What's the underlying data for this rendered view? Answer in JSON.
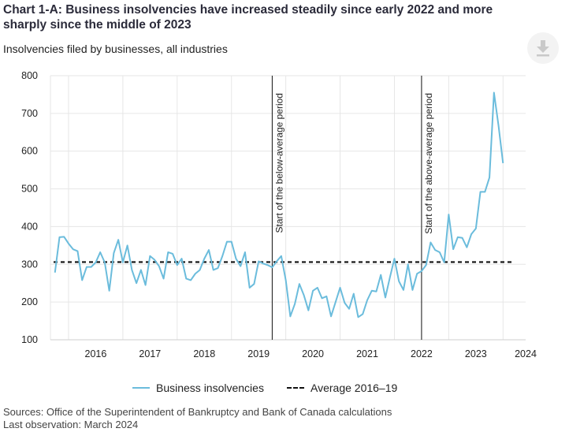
{
  "title": "Chart 1-A: Business insolvencies have increased steadily since early 2022 and more sharply since the middle of 2023",
  "subtitle": "Insolvencies filed by businesses, all industries",
  "download_icon": "download-icon",
  "sources_line1": "Sources: Office of the Superintendent of Bankruptcy and Bank of Canada calculations",
  "sources_line2": "Last observation: March 2024",
  "colors": {
    "series": "#6bbcdc",
    "average": "#111111",
    "grid": "#e6e6e6",
    "vline": "#111111"
  },
  "chart_data": {
    "type": "line",
    "ylim": [
      100,
      800
    ],
    "yticks": [
      100,
      200,
      300,
      400,
      500,
      600,
      700,
      800
    ],
    "xlim": [
      "2015-09",
      "2024-06"
    ],
    "xtick_labels": [
      "2016",
      "2017",
      "2018",
      "2019",
      "2020",
      "2021",
      "2022",
      "2023",
      "2024"
    ],
    "grid": true,
    "legend_position": "bottom",
    "series": [
      {
        "name": "Business insolvencies",
        "x_start": "2015-10",
        "frequency": "monthly",
        "values": [
          278,
          372,
          373,
          355,
          340,
          335,
          258,
          293,
          293,
          305,
          332,
          305,
          230,
          330,
          365,
          305,
          350,
          285,
          250,
          285,
          245,
          322,
          312,
          295,
          262,
          332,
          328,
          298,
          315,
          262,
          258,
          275,
          285,
          315,
          338,
          285,
          290,
          322,
          360,
          360,
          315,
          295,
          332,
          238,
          248,
          308,
          302,
          298,
          292,
          308,
          322,
          258,
          162,
          195,
          248,
          218,
          178,
          230,
          238,
          210,
          215,
          162,
          200,
          238,
          198,
          182,
          222,
          160,
          168,
          205,
          230,
          228,
          272,
          212,
          265,
          315,
          255,
          232,
          300,
          232,
          275,
          282,
          298,
          358,
          338,
          332,
          305,
          432,
          340,
          372,
          370,
          345,
          380,
          395,
          492,
          492,
          530,
          755,
          668,
          568
        ]
      },
      {
        "name": "Average 2016–19",
        "value": 306
      }
    ],
    "vlines": [
      {
        "x": "2019-10",
        "label": "Start of the below-average period"
      },
      {
        "x": "2022-07",
        "label": "Start of the above-average period"
      }
    ]
  }
}
